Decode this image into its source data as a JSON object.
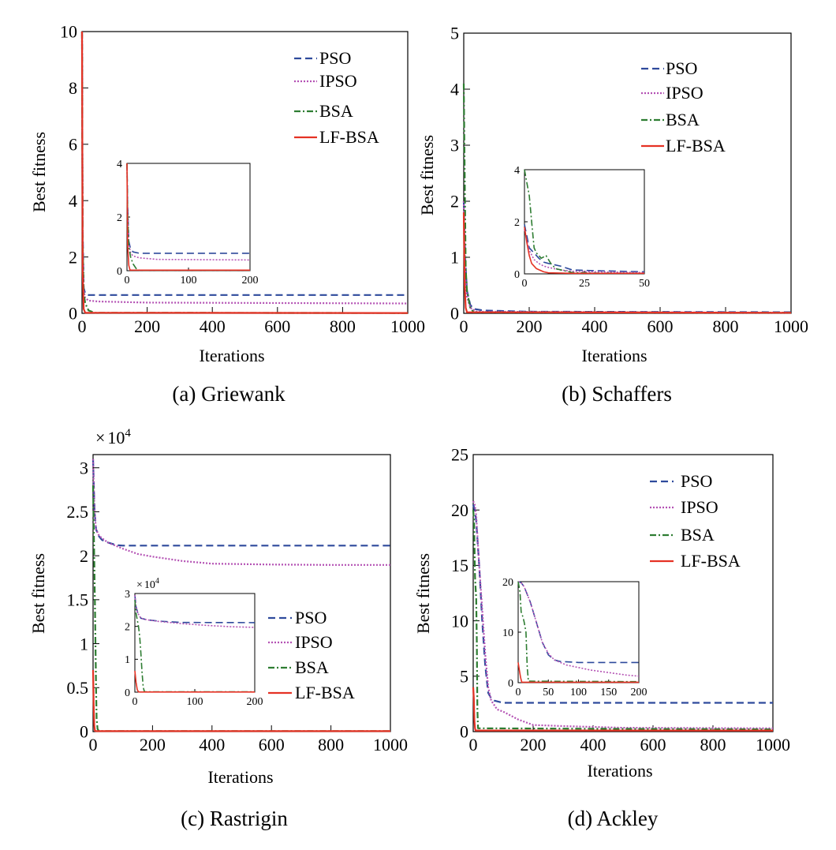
{
  "figure": {
    "xlabel": "Iterations",
    "ylabel": "Best fitness"
  },
  "legend_labels": [
    "PSO",
    "IPSO",
    "BSA",
    "LF-BSA"
  ],
  "colors": {
    "PSO": "#2e4a9c",
    "IPSO": "#b452b4",
    "BSA": "#2e7d32",
    "LF-BSA": "#e53224"
  },
  "chart_data": [
    {
      "type": "line",
      "title": "(a) Griewank",
      "xlabel": "Iterations",
      "ylabel": "Best fitness",
      "xlim": [
        0,
        1000
      ],
      "ylim": [
        0,
        10
      ],
      "xticks": [
        0,
        200,
        400,
        600,
        800,
        1000
      ],
      "yticks": [
        0,
        2,
        4,
        6,
        8,
        10
      ],
      "legend": "top-right",
      "series": [
        {
          "name": "PSO",
          "x": [
            0,
            2,
            5,
            10,
            20,
            1000
          ],
          "y": [
            10,
            3,
            0.9,
            0.7,
            0.65,
            0.65
          ]
        },
        {
          "name": "IPSO",
          "x": [
            0,
            2,
            5,
            10,
            20,
            50,
            200,
            1000
          ],
          "y": [
            10,
            2.6,
            0.8,
            0.55,
            0.45,
            0.42,
            0.38,
            0.35
          ]
        },
        {
          "name": "BSA",
          "x": [
            0,
            2,
            5,
            10,
            20,
            40,
            1000
          ],
          "y": [
            10,
            2.5,
            0.7,
            0.35,
            0.1,
            0.02,
            0.01
          ]
        },
        {
          "name": "LF-BSA",
          "x": [
            0,
            2,
            5,
            10,
            1000
          ],
          "y": [
            10,
            1.5,
            0.15,
            0.02,
            0.01
          ]
        }
      ],
      "inset": {
        "xlim": [
          0,
          200
        ],
        "ylim": [
          0,
          4
        ],
        "xticks": [
          0,
          100,
          200
        ],
        "yticks": [
          0,
          2,
          4
        ],
        "series": [
          {
            "name": "PSO",
            "x": [
              0,
              1,
              3,
              6,
              10,
              20,
              200
            ],
            "y": [
              4,
              2.5,
              1.1,
              0.8,
              0.7,
              0.65,
              0.65
            ]
          },
          {
            "name": "IPSO",
            "x": [
              0,
              1,
              3,
              6,
              10,
              20,
              50,
              200
            ],
            "y": [
              4,
              2.3,
              1.0,
              0.65,
              0.55,
              0.48,
              0.42,
              0.4
            ]
          },
          {
            "name": "BSA",
            "x": [
              0,
              1,
              3,
              6,
              10,
              15,
              20,
              200
            ],
            "y": [
              4,
              2.2,
              0.9,
              0.5,
              0.25,
              0.08,
              0.02,
              0.02
            ]
          },
          {
            "name": "LF-BSA",
            "x": [
              0,
              1,
              3,
              5,
              200
            ],
            "y": [
              4,
              1.0,
              0.2,
              0.02,
              0.02
            ]
          }
        ]
      }
    },
    {
      "type": "line",
      "title": "(b) Schaffers",
      "xlabel": "Iterations",
      "ylabel": "Best fitness",
      "xlim": [
        0,
        1000
      ],
      "ylim": [
        0,
        5
      ],
      "xticks": [
        0,
        200,
        400,
        600,
        800,
        1000
      ],
      "yticks": [
        0,
        1,
        2,
        3,
        4,
        5
      ],
      "legend": "top-right",
      "series": [
        {
          "name": "PSO",
          "x": [
            0,
            5,
            10,
            20,
            30,
            60,
            200,
            1000
          ],
          "y": [
            2.0,
            0.9,
            0.4,
            0.15,
            0.08,
            0.05,
            0.03,
            0.02
          ]
        },
        {
          "name": "IPSO",
          "x": [
            0,
            5,
            10,
            20,
            40,
            1000
          ],
          "y": [
            2.0,
            0.6,
            0.3,
            0.1,
            0.03,
            0.01
          ]
        },
        {
          "name": "BSA",
          "x": [
            0,
            3,
            6,
            10,
            20,
            30,
            1000
          ],
          "y": [
            4.1,
            2.5,
            0.8,
            0.4,
            0.1,
            0.02,
            0.01
          ]
        },
        {
          "name": "LF-BSA",
          "x": [
            0,
            3,
            6,
            10,
            1000
          ],
          "y": [
            1.8,
            0.5,
            0.1,
            0.02,
            0.01
          ]
        }
      ],
      "inset": {
        "xlim": [
          0,
          50
        ],
        "ylim": [
          0,
          4
        ],
        "xticks": [
          0,
          25,
          50
        ],
        "yticks": [
          0,
          2,
          4
        ],
        "series": [
          {
            "name": "PSO",
            "x": [
              0,
              2,
              4,
              6,
              8,
              10,
              15,
              20,
              30,
              50
            ],
            "y": [
              1.9,
              1.0,
              0.8,
              0.6,
              0.45,
              0.4,
              0.3,
              0.15,
              0.12,
              0.08
            ]
          },
          {
            "name": "IPSO",
            "x": [
              0,
              2,
              4,
              6,
              8,
              10,
              15,
              20,
              30,
              50
            ],
            "y": [
              1.7,
              0.9,
              0.55,
              0.4,
              0.3,
              0.25,
              0.15,
              0.1,
              0.08,
              0.05
            ]
          },
          {
            "name": "BSA",
            "x": [
              0,
              1,
              2,
              3,
              4,
              5,
              7,
              9,
              11,
              13,
              20,
              30,
              50
            ],
            "y": [
              4,
              3.5,
              3.0,
              2.0,
              1.0,
              0.8,
              0.6,
              0.7,
              0.4,
              0.2,
              0.05,
              0.03,
              0.02
            ]
          },
          {
            "name": "LF-BSA",
            "x": [
              0,
              1,
              2,
              3,
              5,
              8,
              10,
              20,
              50
            ],
            "y": [
              1.8,
              1.2,
              0.7,
              0.4,
              0.2,
              0.08,
              0.04,
              0.02,
              0.02
            ]
          }
        ]
      }
    },
    {
      "type": "line",
      "title": "(c) Rastrigin",
      "xlabel": "Iterations",
      "ylabel": "Best fitness",
      "multiplier": "× 10⁴",
      "multiplier_base": "10",
      "multiplier_exp": "4",
      "xlim": [
        0,
        1000
      ],
      "ylim": [
        0,
        31500
      ],
      "xticks": [
        0,
        200,
        400,
        600,
        800,
        1000
      ],
      "yticks": [
        0,
        5000,
        10000,
        15000,
        20000,
        25000,
        30000
      ],
      "yticklabels": [
        "0",
        "0.5",
        "1",
        "1.5",
        "2",
        "2.5",
        "3"
      ],
      "legend": "lower-right (inside inset area)",
      "series": [
        {
          "name": "PSO",
          "x": [
            0,
            5,
            10,
            20,
            30,
            50,
            80,
            100,
            1000
          ],
          "y": [
            31000,
            25000,
            23000,
            22200,
            21800,
            21500,
            21200,
            21150,
            21150
          ]
        },
        {
          "name": "IPSO",
          "x": [
            0,
            5,
            10,
            20,
            30,
            50,
            100,
            150,
            200,
            300,
            400,
            600,
            800,
            1000
          ],
          "y": [
            31000,
            25000,
            23000,
            22300,
            22000,
            21500,
            20800,
            20200,
            19900,
            19400,
            19100,
            19000,
            18950,
            18950
          ]
        },
        {
          "name": "BSA",
          "x": [
            0,
            3,
            6,
            10,
            12,
            15,
            20,
            1000
          ],
          "y": [
            28000,
            22000,
            15000,
            5000,
            1500,
            300,
            50,
            50
          ]
        },
        {
          "name": "LF-BSA",
          "x": [
            0,
            2,
            4,
            6,
            10,
            1000
          ],
          "y": [
            7000,
            3000,
            800,
            100,
            50,
            50
          ]
        }
      ],
      "inset": {
        "xlim": [
          0,
          200
        ],
        "ylim": [
          0,
          30000
        ],
        "xticks": [
          0,
          100,
          200
        ],
        "yticks": [
          0,
          10000,
          20000,
          30000
        ],
        "yticklabels": [
          "0",
          "1",
          "2",
          "3"
        ],
        "multiplier": "× 10⁴",
        "series": [
          {
            "name": "PSO",
            "x": [
              0,
              2,
              5,
              10,
              20,
              40,
              80,
              200
            ],
            "y": [
              29500,
              26000,
              24000,
              22500,
              22000,
              21600,
              21200,
              21150
            ]
          },
          {
            "name": "IPSO",
            "x": [
              0,
              2,
              5,
              10,
              20,
              40,
              80,
              120,
              160,
              200
            ],
            "y": [
              29500,
              26000,
              24000,
              22500,
              22000,
              21500,
              20800,
              20300,
              19900,
              19700
            ]
          },
          {
            "name": "BSA",
            "x": [
              0,
              2,
              4,
              6,
              8,
              10,
              12,
              14,
              16,
              200
            ],
            "y": [
              28000,
              24000,
              22000,
              20000,
              17000,
              12000,
              6000,
              1500,
              100,
              100
            ]
          },
          {
            "name": "LF-BSA",
            "x": [
              0,
              2,
              4,
              6,
              8,
              200
            ],
            "y": [
              6500,
              3000,
              800,
              100,
              50,
              50
            ]
          }
        ]
      }
    },
    {
      "type": "line",
      "title": "(d) Ackley",
      "xlabel": "Iterations",
      "ylabel": "Best fitness",
      "xlim": [
        0,
        1000
      ],
      "ylim": [
        0,
        25
      ],
      "xticks": [
        0,
        200,
        400,
        600,
        800,
        1000
      ],
      "yticks": [
        0,
        5,
        10,
        15,
        20,
        25
      ],
      "legend": "top-right",
      "series": [
        {
          "name": "PSO",
          "x": [
            0,
            5,
            10,
            20,
            30,
            40,
            50,
            60,
            70,
            100,
            1000
          ],
          "y": [
            20.5,
            20,
            19,
            15,
            10,
            6,
            3.5,
            3,
            2.8,
            2.6,
            2.6
          ]
        },
        {
          "name": "IPSO",
          "x": [
            0,
            5,
            10,
            20,
            30,
            40,
            50,
            60,
            80,
            100,
            150,
            200,
            300,
            500,
            1000
          ],
          "y": [
            20.8,
            20.5,
            19.5,
            15,
            11,
            7,
            4,
            2.8,
            2.0,
            1.8,
            1.1,
            0.6,
            0.5,
            0.35,
            0.3
          ]
        },
        {
          "name": "BSA",
          "x": [
            0,
            3,
            6,
            8,
            10,
            12,
            14,
            16,
            1000
          ],
          "y": [
            20,
            19,
            14,
            13,
            12,
            8,
            2,
            0.3,
            0.2
          ]
        },
        {
          "name": "LF-BSA",
          "x": [
            0,
            2,
            4,
            6,
            8,
            1000
          ],
          "y": [
            4,
            3,
            1,
            0.3,
            0.1,
            0.1
          ]
        }
      ],
      "inset": {
        "xlim": [
          0,
          200
        ],
        "ylim": [
          0,
          20
        ],
        "xticks": [
          0,
          50,
          100,
          150,
          200
        ],
        "yticks": [
          0,
          10,
          20
        ],
        "series": [
          {
            "name": "PSO",
            "x": [
              0,
              5,
              10,
              20,
              30,
              40,
              50,
              60,
              70,
              100,
              200
            ],
            "y": [
              20,
              19.8,
              19,
              16,
              12,
              8,
              5.5,
              4.5,
              4.2,
              4,
              4
            ]
          },
          {
            "name": "IPSO",
            "x": [
              0,
              5,
              10,
              20,
              30,
              40,
              50,
              60,
              80,
              100,
              120,
              150,
              180,
              200
            ],
            "y": [
              20,
              19.8,
              19,
              16,
              12,
              8,
              5.8,
              4.5,
              3.5,
              3,
              2.5,
              2.0,
              1.5,
              1.3
            ]
          },
          {
            "name": "BSA",
            "x": [
              0,
              3,
              5,
              8,
              10,
              13,
              15,
              17,
              200
            ],
            "y": [
              20,
              18,
              14,
              13,
              12,
              10,
              3,
              0.3,
              0.2
            ]
          },
          {
            "name": "LF-BSA",
            "x": [
              0,
              2,
              4,
              6,
              200
            ],
            "y": [
              4,
              2.5,
              1,
              0.1,
              0.1
            ]
          }
        ]
      }
    }
  ]
}
